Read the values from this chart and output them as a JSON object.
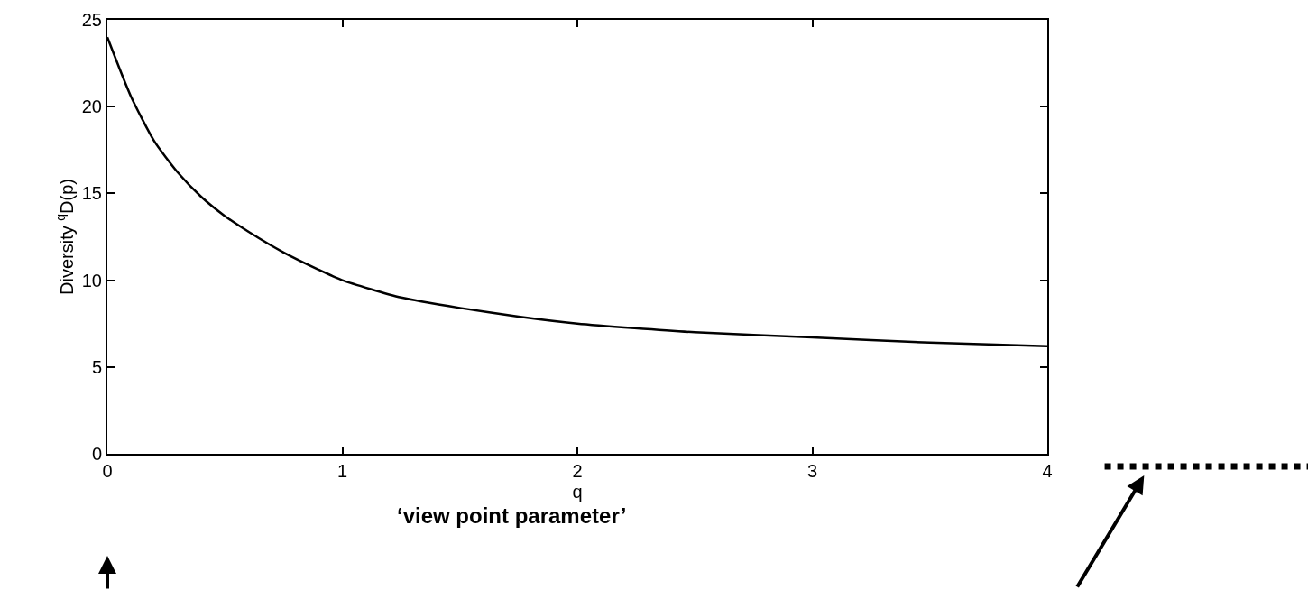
{
  "chart_data": {
    "type": "line",
    "xlabel": "q",
    "ylabel": "Diversity $^{q}$D(p)",
    "x": [
      0,
      0.1,
      0.2,
      0.3,
      0.4,
      0.5,
      0.6,
      0.75,
      0.9,
      1,
      1.25,
      1.5,
      1.75,
      2,
      2.5,
      3,
      3.5,
      4
    ],
    "series": [
      {
        "color": "#000000",
        "values": [
          24,
          20.6,
          18,
          16.2,
          14.8,
          13.7,
          12.8,
          11.6,
          10.6,
          10,
          9,
          8.4,
          7.9,
          7.5,
          7,
          6.7,
          6.4,
          6.2
        ]
      }
    ],
    "xlim": [
      0,
      4
    ],
    "xticks": [
      0,
      1,
      2,
      3,
      4
    ],
    "ylim": [
      0,
      25
    ],
    "yticks": [
      0,
      5,
      10,
      15,
      20,
      25
    ],
    "marker": "none",
    "line_style": "solid",
    "annotations": [
      "‘view point parameter’"
    ]
  }
}
